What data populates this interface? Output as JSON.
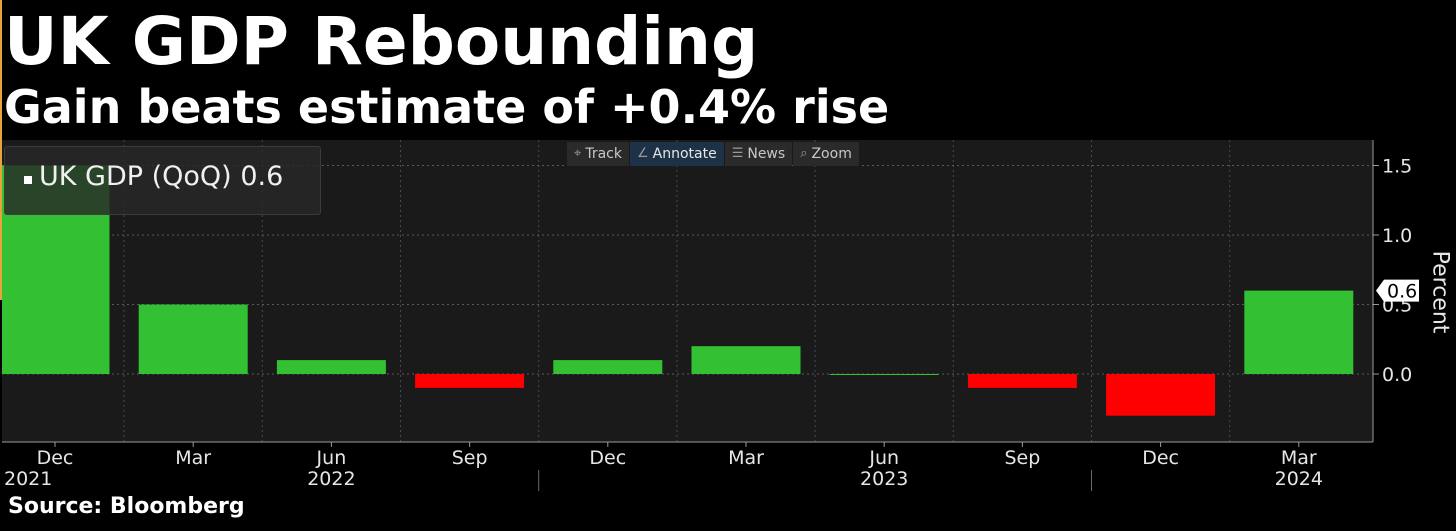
{
  "header": {
    "title": "UK GDP Rebounding",
    "subtitle": "Gain beats estimate of +0.4% rise"
  },
  "toolbar": {
    "items": [
      {
        "label": "Track",
        "icon": "crosshair-icon"
      },
      {
        "label": "Annotate",
        "icon": "pencil-icon"
      },
      {
        "label": "News",
        "icon": "news-icon"
      },
      {
        "label": "Zoom",
        "icon": "magnifier-icon"
      }
    ]
  },
  "legend": {
    "series_label": "UK GDP (QoQ)",
    "last_value": "0.6"
  },
  "footer": {
    "source": "Source: Bloomberg"
  },
  "chart_data": {
    "type": "bar",
    "categories": [
      "Dec 2021",
      "Mar 2022",
      "Jun 2022",
      "Sep 2022",
      "Dec 2022",
      "Mar 2023",
      "Jun 2023",
      "Sep 2023",
      "Dec 2023",
      "Mar 2024"
    ],
    "values": [
      1.5,
      0.5,
      0.1,
      -0.1,
      0.1,
      0.2,
      0.0,
      -0.1,
      -0.3,
      0.6
    ],
    "month_labels": [
      "Dec",
      "Mar",
      "Jun",
      "Sep",
      "Dec",
      "Mar",
      "Jun",
      "Sep",
      "Dec",
      "Mar"
    ],
    "year_labels": [
      {
        "label": "2021",
        "at_index": 0
      },
      {
        "label": "2022",
        "at_index": 2
      },
      {
        "label": "2023",
        "at_index": 6
      },
      {
        "label": "2024",
        "at_index": 9
      }
    ],
    "ylabel": "Percent",
    "ylim": [
      -0.5,
      1.7
    ],
    "yticks": [
      "1.5",
      "1.0",
      "0.5",
      "0.0"
    ],
    "ytick_values": [
      1.5,
      1.0,
      0.5,
      0.0
    ],
    "last_value_label": "0.6",
    "grid": true,
    "colors": {
      "positive": "#33c133",
      "negative": "#ff0000",
      "background": "#1a1a1a"
    }
  }
}
